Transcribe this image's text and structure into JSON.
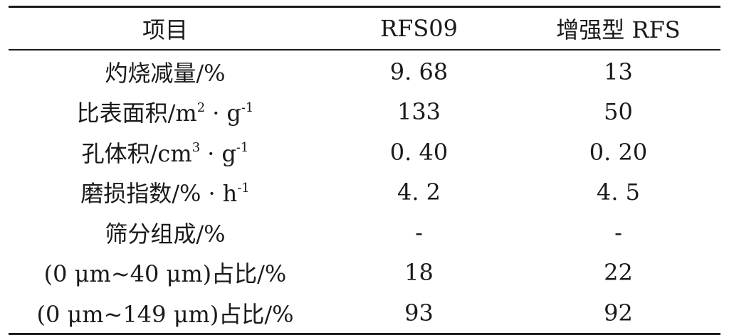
{
  "table": {
    "headers": [
      "项目",
      "RFS09",
      "增强型 RFS"
    ],
    "rows": [
      {
        "label": "灼烧减量/%",
        "rfs09": "9. 68",
        "enhanced": "13"
      },
      {
        "label": "比表面积/m",
        "label_sup1": "2",
        "label_mid": "·",
        "label_tail": "g",
        "label_sup2": "-1",
        "rfs09": "133",
        "enhanced": "50"
      },
      {
        "label": "孔体积/cm",
        "label_sup1": "3",
        "label_mid": "·",
        "label_tail": "g",
        "label_sup2": "-1",
        "rfs09": "0. 40",
        "enhanced": "0. 20"
      },
      {
        "label": "磨损指数/%",
        "label_mid": "·",
        "label_tail": "h",
        "label_sup2": "-1",
        "rfs09": "4. 2",
        "enhanced": "4. 5"
      },
      {
        "label": "筛分组成/%",
        "rfs09": "-",
        "enhanced": "-"
      },
      {
        "label": "(0 μm~40 μm)占比/%",
        "rfs09": "18",
        "enhanced": "22"
      },
      {
        "label": "(0 μm~149 μm)占比/%",
        "rfs09": "93",
        "enhanced": "92"
      }
    ]
  }
}
